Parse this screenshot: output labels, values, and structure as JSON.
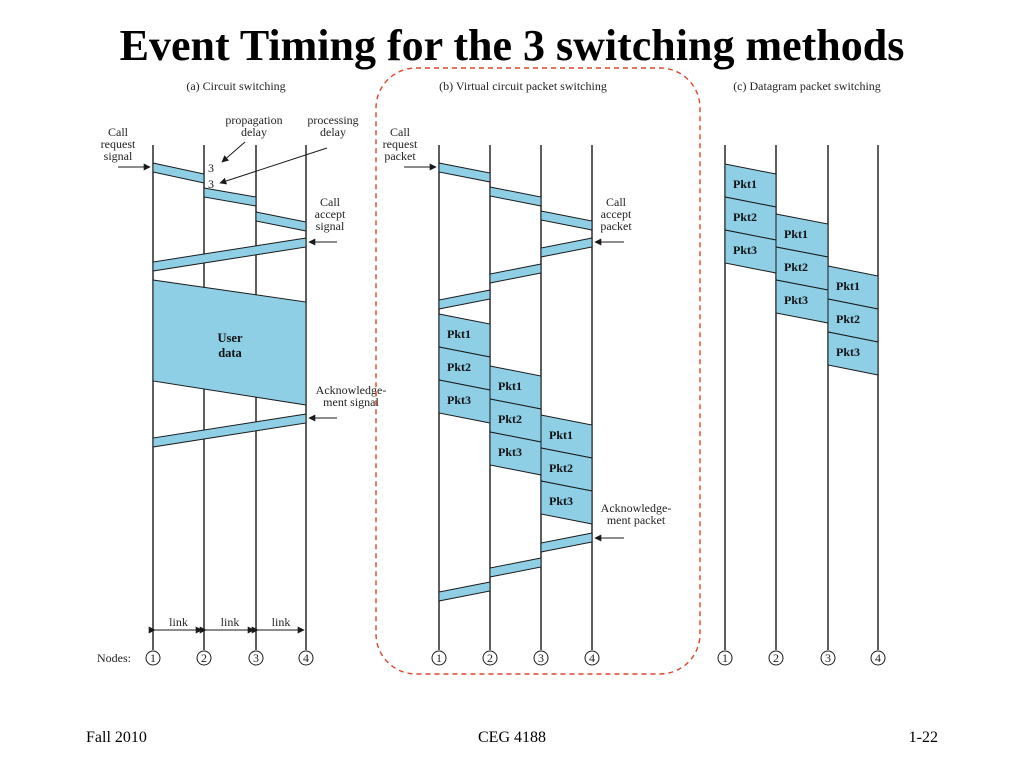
{
  "slide": {
    "title": "Event Timing for the 3 switching methods",
    "footer_left": "Fall 2010",
    "footer_center": "CEG 4188",
    "footer_right": "1-22"
  },
  "colors": {
    "fill": "#8ecfe6",
    "stroke": "#1a1a1a",
    "highlight_border": "#e0452a"
  },
  "panels": {
    "a": {
      "caption": "(a) Circuit switching",
      "call_request": [
        "Call",
        "request",
        "signal"
      ],
      "propagation": [
        "propagation",
        "delay"
      ],
      "processing": [
        "processing",
        "delay"
      ],
      "call_accept": [
        "Call",
        "accept",
        "signal"
      ],
      "user_data": [
        "User",
        "data"
      ],
      "ack": [
        "Acknowledge-",
        "ment signal"
      ],
      "link": "link",
      "nodes_label": "Nodes:",
      "nodes": [
        "1",
        "2",
        "3",
        "4"
      ]
    },
    "b": {
      "caption": "(b) Virtual circuit packet switching",
      "call_request": [
        "Call",
        "request",
        "packet"
      ],
      "call_accept": [
        "Call",
        "accept",
        "packet"
      ],
      "ack": [
        "Acknowledge-",
        "ment packet"
      ],
      "nodes": [
        "1",
        "2",
        "3",
        "4"
      ]
    },
    "c": {
      "caption": "(c) Datagram packet switching",
      "nodes": [
        "1",
        "2",
        "3",
        "4"
      ]
    },
    "packets": [
      "Pkt1",
      "Pkt2",
      "Pkt3"
    ]
  }
}
